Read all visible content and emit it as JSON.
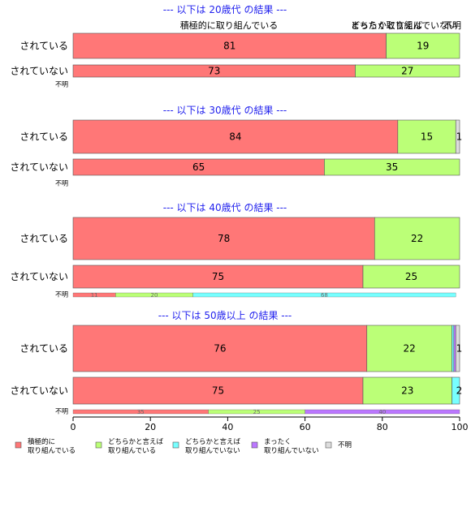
{
  "chart_data": {
    "type": "bar",
    "orientation": "horizontal",
    "stacked": true,
    "xlim": [
      0,
      100
    ],
    "xticks": [
      "0",
      "20",
      "40",
      "60",
      "80",
      "100"
    ],
    "legend_position": "bottom",
    "series": [
      {
        "name": "積極的に\n取り組んでいる",
        "color": "#ff7777"
      },
      {
        "name": "どちらかと言えば\n取り組んでいる",
        "color": "#bbff77"
      },
      {
        "name": "どちらかと言えば\n取り組んでいない",
        "color": "#77ffff"
      },
      {
        "name": "まったく\n取り組んでいない",
        "color": "#bb77ff"
      },
      {
        "name": "不明",
        "color": "#dddddd"
      }
    ],
    "panels": [
      {
        "title": "--- 以下は 20歳代 の結果 ---",
        "header_labels": [
          "積極的に取り組んでいる",
          "どちらかと言えば",
          "まったく取り組んでいない",
          "不明"
        ],
        "rows": [
          {
            "category": "されている",
            "values": [
              81,
              19,
              0,
              0,
              0
            ],
            "labels": [
              "81",
              "19",
              "",
              "",
              ""
            ]
          },
          {
            "category": "されていない",
            "values": [
              73,
              27,
              0,
              0,
              0
            ],
            "labels": [
              "73",
              "27",
              "",
              "",
              ""
            ]
          },
          {
            "category": "不明",
            "values": [
              0,
              0,
              0,
              0,
              0
            ],
            "labels": [
              "",
              "",
              "",
              "",
              ""
            ]
          }
        ]
      },
      {
        "title": "--- 以下は 30歳代 の結果 ---",
        "header_labels": [],
        "rows": [
          {
            "category": "されている",
            "values": [
              84,
              15,
              0,
              0,
              1
            ],
            "labels": [
              "84",
              "15",
              "",
              "",
              "1"
            ]
          },
          {
            "category": "されていない",
            "values": [
              65,
              35,
              0,
              0,
              0
            ],
            "labels": [
              "65",
              "35",
              "",
              "",
              ""
            ]
          },
          {
            "category": "不明",
            "values": [
              0,
              0,
              0,
              0,
              0
            ],
            "labels": [
              "",
              "",
              "",
              "",
              ""
            ]
          }
        ]
      },
      {
        "title": "--- 以下は 40歳代 の結果 ---",
        "header_labels": [],
        "rows": [
          {
            "category": "されている",
            "values": [
              78,
              22,
              0,
              0,
              0
            ],
            "labels": [
              "78",
              "22",
              "",
              "",
              ""
            ]
          },
          {
            "category": "されていない",
            "values": [
              75,
              25,
              0,
              0,
              0
            ],
            "labels": [
              "75",
              "25",
              "",
              "",
              ""
            ]
          },
          {
            "category": "不明",
            "values": [
              11,
              20,
              68,
              0,
              0
            ],
            "labels": [
              "11",
              "20",
              "68",
              "",
              ""
            ]
          }
        ]
      },
      {
        "title": "--- 以下は 50歳以上 の結果 ---",
        "header_labels": [],
        "rows": [
          {
            "category": "されている",
            "values": [
              76,
              22,
              0.5,
              0.5,
              1
            ],
            "labels": [
              "76",
              "22",
              "",
              "",
              "1"
            ]
          },
          {
            "category": "されていない",
            "values": [
              75,
              23,
              2,
              0,
              0
            ],
            "labels": [
              "75",
              "23",
              "2",
              "",
              ""
            ]
          },
          {
            "category": "不明",
            "values": [
              35,
              25,
              0,
              40,
              0
            ],
            "labels": [
              "35",
              "25",
              "",
              "40",
              ""
            ]
          }
        ]
      }
    ]
  }
}
